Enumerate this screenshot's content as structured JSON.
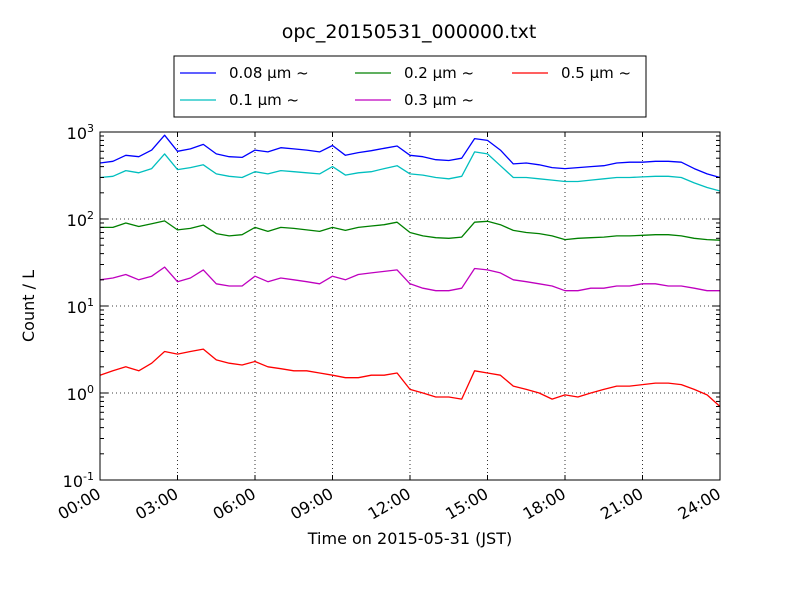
{
  "chart_data": {
    "type": "line",
    "title": "opc_20150531_000000.txt",
    "xlabel": "Time on 2015-05-31 (JST)",
    "ylabel": "Count / L",
    "xlim": [
      "00:00",
      "24:00"
    ],
    "ylim": [
      0.1,
      1000
    ],
    "yscale": "log",
    "grid": true,
    "legend_position": "top-center",
    "x_ticks": [
      "00:00",
      "03:00",
      "06:00",
      "09:00",
      "12:00",
      "15:00",
      "18:00",
      "21:00",
      "24:00"
    ],
    "y_ticks": [
      {
        "value": 0.1,
        "base": "10",
        "exp": "-1"
      },
      {
        "value": 1,
        "base": "10",
        "exp": "0"
      },
      {
        "value": 10,
        "base": "10",
        "exp": "1"
      },
      {
        "value": 100,
        "base": "10",
        "exp": "2"
      },
      {
        "value": 1000,
        "base": "10",
        "exp": "3"
      }
    ],
    "x": [
      "00:00",
      "00:30",
      "01:00",
      "01:30",
      "02:00",
      "02:30",
      "03:00",
      "03:30",
      "04:00",
      "04:30",
      "05:00",
      "05:30",
      "06:00",
      "06:30",
      "07:00",
      "07:30",
      "08:00",
      "08:30",
      "09:00",
      "09:30",
      "10:00",
      "10:30",
      "11:00",
      "11:30",
      "12:00",
      "12:30",
      "13:00",
      "13:30",
      "14:00",
      "14:30",
      "15:00",
      "15:30",
      "16:00",
      "16:30",
      "17:00",
      "17:30",
      "18:00",
      "18:30",
      "19:00",
      "19:30",
      "20:00",
      "20:30",
      "21:00",
      "21:30",
      "22:00",
      "22:30",
      "23:00",
      "23:30",
      "24:00"
    ],
    "series": [
      {
        "name": "0.08 μm ~",
        "color": "#0000ff",
        "values": [
          440,
          460,
          540,
          520,
          620,
          920,
          600,
          640,
          720,
          560,
          520,
          510,
          620,
          590,
          660,
          640,
          620,
          590,
          700,
          540,
          580,
          610,
          650,
          690,
          540,
          520,
          480,
          470,
          500,
          840,
          800,
          620,
          430,
          440,
          420,
          390,
          380,
          390,
          400,
          410,
          440,
          450,
          450,
          460,
          460,
          450,
          380,
          330,
          300
        ]
      },
      {
        "name": "0.1 μm ~",
        "color": "#00bfbf",
        "values": [
          300,
          310,
          360,
          340,
          380,
          560,
          370,
          390,
          420,
          330,
          310,
          300,
          350,
          330,
          360,
          350,
          340,
          330,
          400,
          320,
          340,
          350,
          380,
          410,
          330,
          320,
          300,
          290,
          310,
          590,
          560,
          410,
          300,
          300,
          290,
          280,
          270,
          270,
          280,
          290,
          300,
          300,
          305,
          310,
          310,
          300,
          260,
          230,
          210
        ]
      },
      {
        "name": "0.2 μm ~",
        "color": "#008000",
        "values": [
          80,
          80,
          90,
          82,
          88,
          95,
          75,
          78,
          85,
          68,
          64,
          66,
          80,
          72,
          80,
          78,
          75,
          72,
          80,
          74,
          80,
          83,
          86,
          92,
          70,
          64,
          61,
          60,
          62,
          92,
          94,
          86,
          74,
          70,
          68,
          64,
          58,
          60,
          61,
          62,
          64,
          64,
          65,
          66,
          66,
          64,
          60,
          58,
          57
        ]
      },
      {
        "name": "0.3 μm ~",
        "color": "#bf00bf",
        "values": [
          20,
          21,
          23,
          20,
          22,
          28,
          19,
          21,
          26,
          18,
          17,
          17,
          22,
          19,
          21,
          20,
          19,
          18,
          22,
          20,
          23,
          24,
          25,
          26,
          18,
          16,
          15,
          15,
          16,
          27,
          26,
          24,
          20,
          19,
          18,
          17,
          15,
          15,
          16,
          16,
          17,
          17,
          18,
          18,
          17,
          17,
          16,
          15,
          15
        ]
      },
      {
        "name": "0.5 μm ~",
        "color": "#ff0000",
        "values": [
          1.6,
          1.8,
          2.0,
          1.8,
          2.2,
          3.0,
          2.8,
          3.0,
          3.2,
          2.4,
          2.2,
          2.1,
          2.3,
          2.0,
          1.9,
          1.8,
          1.8,
          1.7,
          1.6,
          1.5,
          1.5,
          1.6,
          1.6,
          1.7,
          1.1,
          1.0,
          0.9,
          0.9,
          0.85,
          1.8,
          1.7,
          1.6,
          1.2,
          1.1,
          1.0,
          0.85,
          0.95,
          0.9,
          1.0,
          1.1,
          1.2,
          1.2,
          1.25,
          1.3,
          1.3,
          1.25,
          1.1,
          0.95,
          0.7
        ]
      }
    ]
  }
}
